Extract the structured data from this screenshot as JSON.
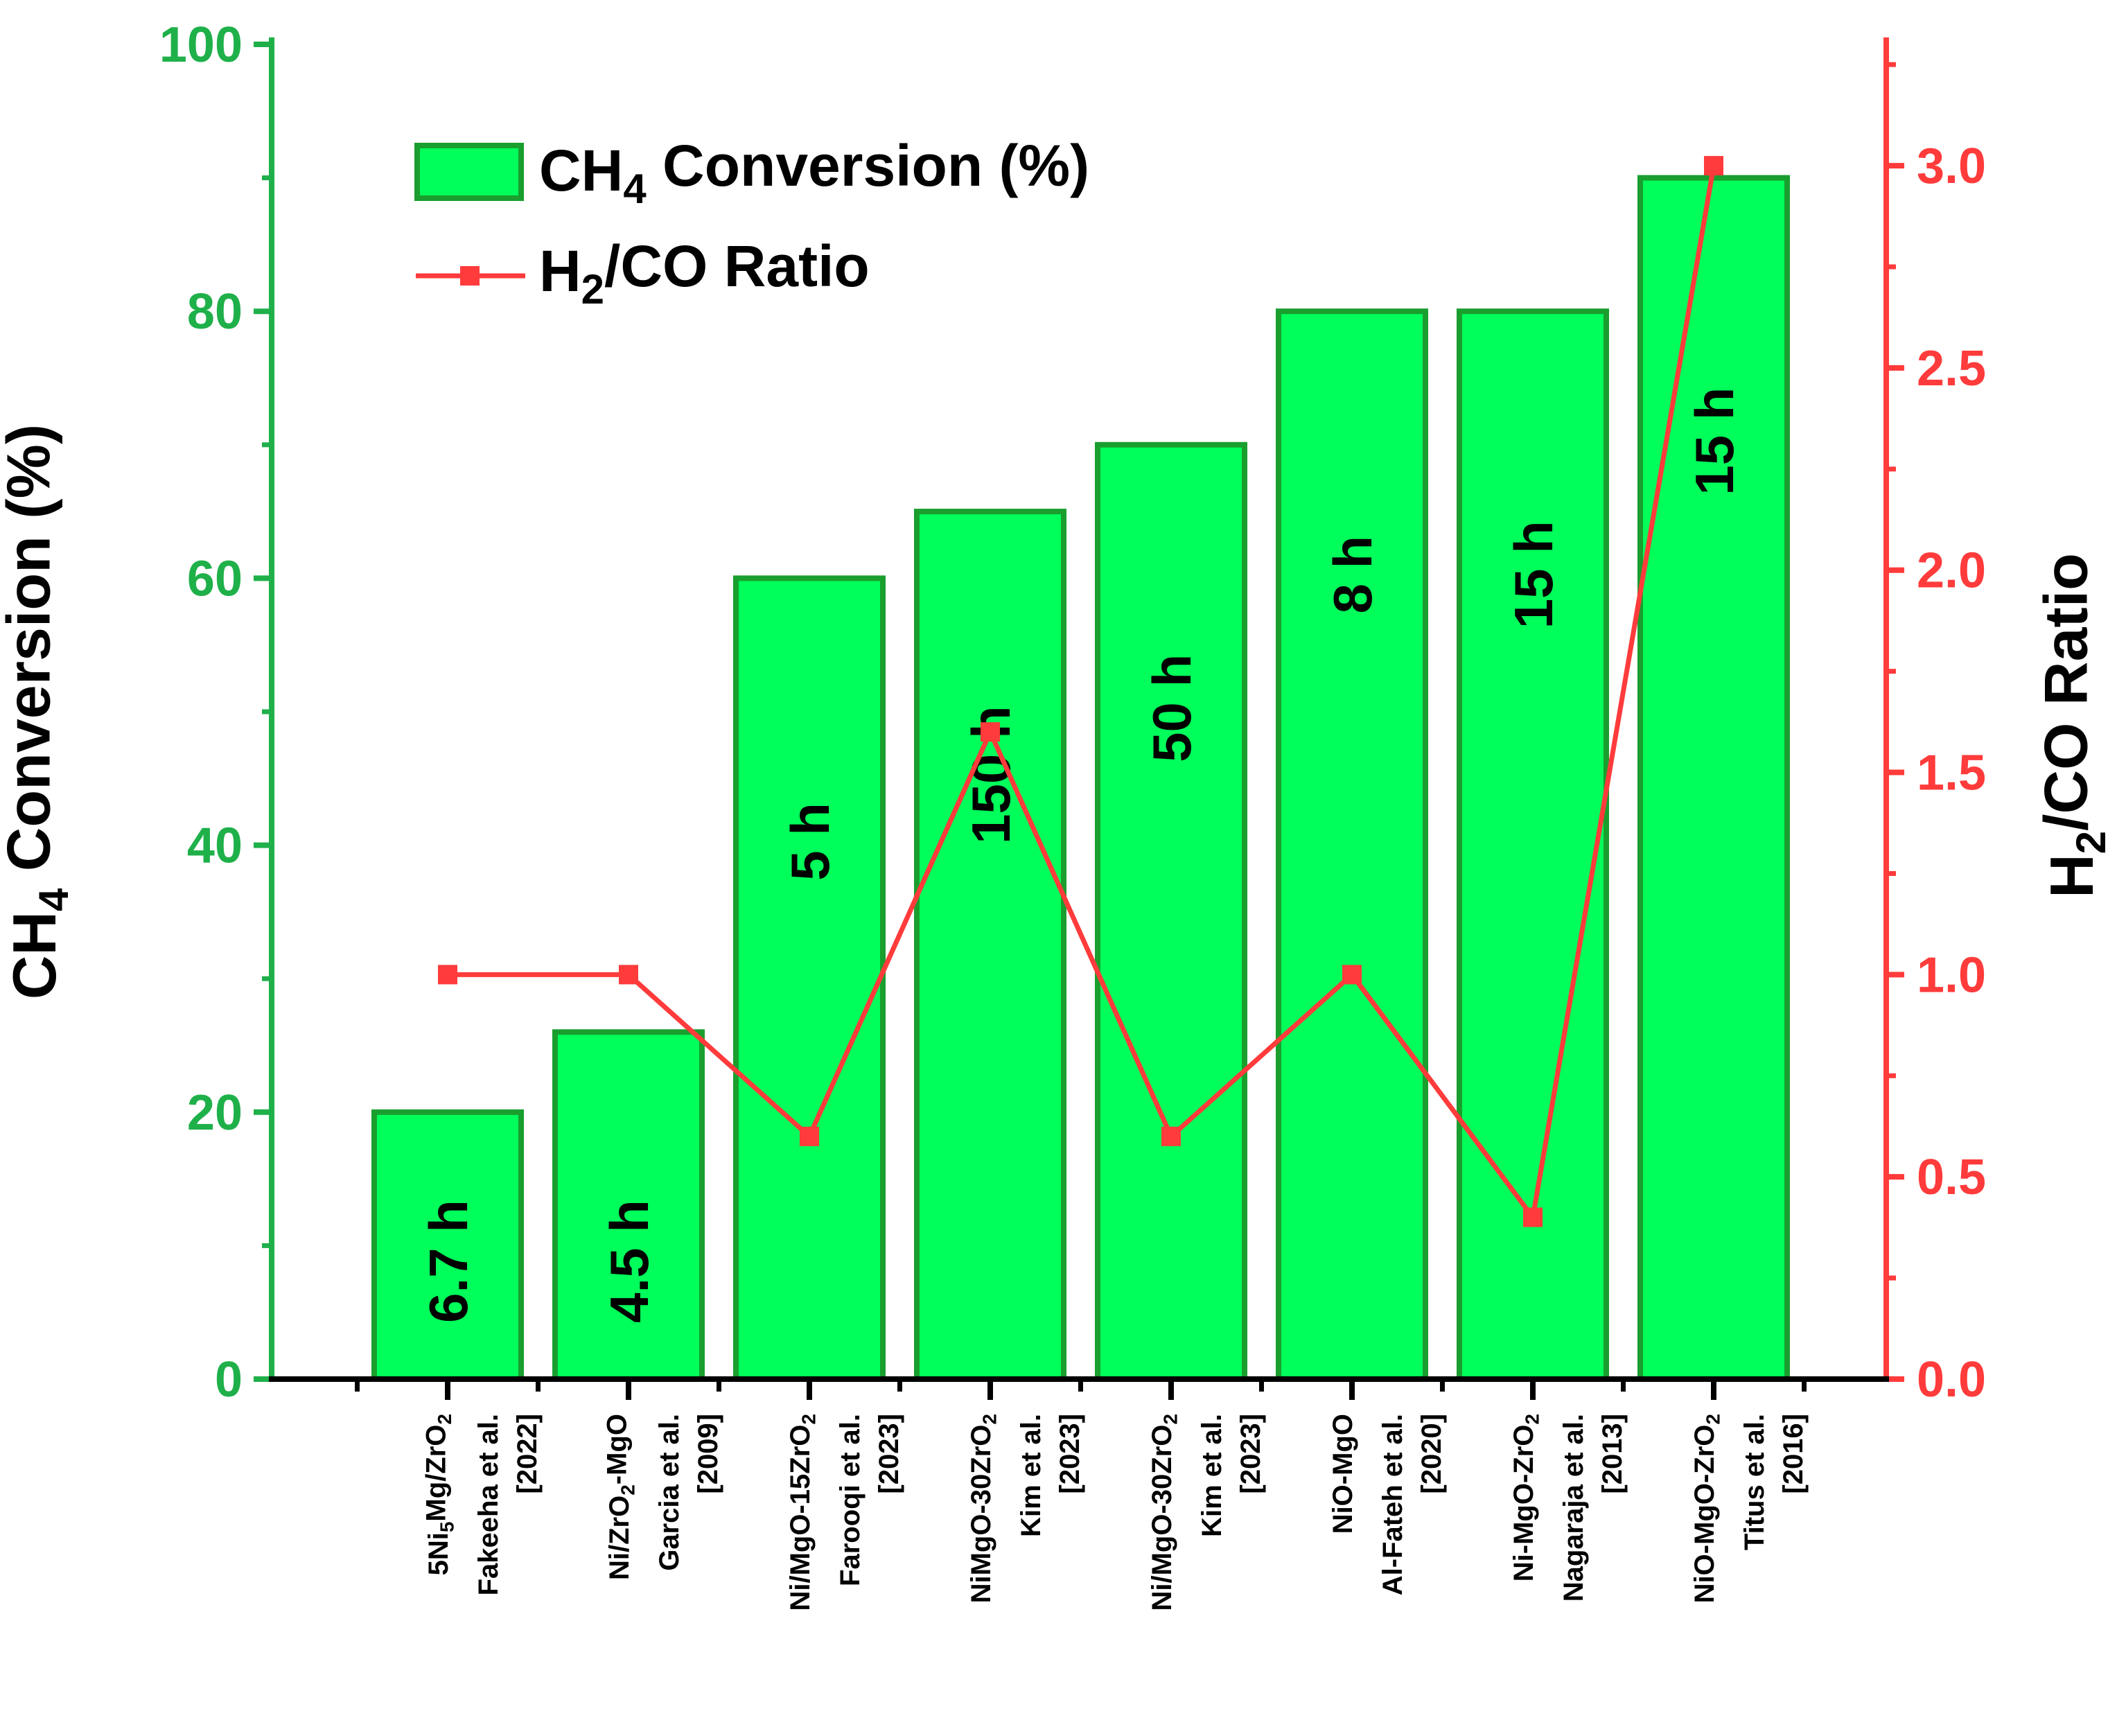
{
  "chart_data": {
    "type": "bar",
    "categories": [
      {
        "catalyst": "5Ni5Mg/ZrO2",
        "author": "Fakeeha et al.",
        "year": "[2022]"
      },
      {
        "catalyst": "Ni/ZrO2-MgO",
        "author": "Garcia et al.",
        "year": "[2009]"
      },
      {
        "catalyst": "Ni/MgO-15ZrO2",
        "author": "Farooqi et al.",
        "year": "[2023]"
      },
      {
        "catalyst": "NiMgO-30ZrO2",
        "author": "Kim et al.",
        "year": "[2023]"
      },
      {
        "catalyst": "Ni/MgO-30ZrO2",
        "author": "Kim et al.",
        "year": "[2023]"
      },
      {
        "catalyst": "NiO-MgO",
        "author": "Al-Fateh et al.",
        "year": "[2020]"
      },
      {
        "catalyst": "Ni-MgO-ZrO2",
        "author": "Nagaraja et al.",
        "year": "[2013]"
      },
      {
        "catalyst": "NiO-MgO-ZrO2",
        "author": "Titus et al.",
        "year": "[2016]"
      }
    ],
    "series": [
      {
        "name": "CH4 Conversion (%)",
        "kind": "bar",
        "axis": "left",
        "values": [
          20,
          26,
          60,
          65,
          70,
          80,
          80,
          90
        ]
      },
      {
        "name": "H2/CO Ratio",
        "kind": "line",
        "axis": "right",
        "values": [
          1.0,
          1.0,
          0.6,
          1.6,
          0.6,
          1.0,
          0.4,
          3.0
        ]
      }
    ],
    "bar_labels": [
      "6.7 h",
      "4.5 h",
      "5 h",
      "150 h",
      "50 h",
      "8 h",
      "15 h",
      "15 h"
    ],
    "ylabel_left": "CH4 Conversion (%)",
    "ylabel_right": "H2/CO Ratio",
    "ylim_left": [
      0,
      100
    ],
    "ylim_right": [
      0,
      3.3
    ],
    "yticks_left": [
      "0",
      "20",
      "40",
      "60",
      "80",
      "100"
    ],
    "yticks_right": [
      "0.0",
      "0.5",
      "1.0",
      "1.5",
      "2.0",
      "2.5",
      "3.0"
    ],
    "legend_position": "top-left",
    "grid": false
  },
  "colors": {
    "left_axis": "#1fb04a",
    "right_axis": "#ff3b3b",
    "bar_fill": "#00ff5a",
    "bar_stroke": "#1a9e2e",
    "line": "#ff3b3b",
    "text": "#000000"
  }
}
